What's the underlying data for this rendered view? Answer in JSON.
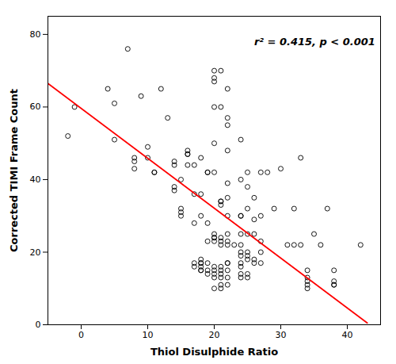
{
  "chart_data": {
    "type": "scatter",
    "title": "",
    "xlabel": "Thiol Disulphide Ratio",
    "ylabel": "Corrected TIMI Frame Count",
    "annotation": "r² = 0.415, p < 0.001",
    "xlim": [
      -5,
      45
    ],
    "ylim": [
      0,
      85
    ],
    "xticks": [
      0,
      10,
      20,
      30,
      40
    ],
    "yticks": [
      0,
      20,
      40,
      60,
      80
    ],
    "grid": false,
    "series": [
      {
        "type": "scatter",
        "color": "black",
        "marker": "circle",
        "x": [
          -2,
          -1,
          4,
          5,
          5,
          7,
          8,
          8,
          8,
          9,
          10,
          10,
          11,
          11,
          12,
          13,
          14,
          14,
          14,
          14,
          15,
          15,
          15,
          15,
          16,
          16,
          16,
          16,
          17,
          17,
          17,
          17,
          17,
          18,
          18,
          18,
          18,
          18,
          18,
          18,
          18,
          18,
          19,
          19,
          19,
          19,
          19,
          19,
          19,
          20,
          20,
          20,
          20,
          20,
          20,
          20,
          20,
          20,
          20,
          20,
          20,
          20,
          20,
          20,
          21,
          21,
          21,
          21,
          21,
          21,
          21,
          21,
          21,
          21,
          21,
          21,
          21,
          21,
          22,
          22,
          22,
          22,
          22,
          22,
          22,
          22,
          22,
          22,
          22,
          22,
          22,
          22,
          22,
          23,
          24,
          24,
          24,
          24,
          24,
          24,
          24,
          24,
          24,
          24,
          24,
          24,
          25,
          25,
          25,
          25,
          25,
          25,
          25,
          25,
          25,
          26,
          26,
          26,
          26,
          26,
          27,
          27,
          27,
          27,
          27,
          28,
          29,
          30,
          31,
          32,
          32,
          33,
          33,
          34,
          34,
          34,
          34,
          34,
          35,
          36,
          37,
          38,
          38,
          38,
          38,
          42
        ],
        "values": [
          52,
          60,
          65,
          61,
          51,
          76,
          46,
          45,
          43,
          63,
          49,
          46,
          42,
          42,
          65,
          57,
          44,
          45,
          38,
          37,
          40,
          32,
          31,
          30,
          48,
          47,
          47,
          44,
          44,
          36,
          28,
          17,
          16,
          46,
          36,
          30,
          18,
          17,
          17,
          16,
          15,
          15,
          42,
          42,
          28,
          23,
          17,
          15,
          14,
          70,
          68,
          67,
          60,
          50,
          42,
          25,
          24,
          24,
          23,
          16,
          15,
          14,
          13,
          10,
          70,
          60,
          34,
          34,
          33,
          24,
          23,
          22,
          16,
          15,
          14,
          13,
          11,
          10,
          65,
          57,
          55,
          48,
          39,
          35,
          30,
          25,
          23,
          22,
          17,
          17,
          15,
          13,
          11,
          22,
          51,
          40,
          30,
          30,
          25,
          22,
          20,
          19,
          17,
          16,
          14,
          13,
          42,
          38,
          32,
          25,
          20,
          19,
          18,
          14,
          13,
          35,
          29,
          25,
          18,
          17,
          42,
          30,
          23,
          20,
          17,
          42,
          32,
          43,
          22,
          32,
          22,
          46,
          22,
          15,
          13,
          12,
          11,
          10,
          25,
          22,
          32,
          15,
          12,
          11,
          11,
          22
        ]
      },
      {
        "type": "line",
        "color": "red",
        "line_style": "solid",
        "x": [
          -5,
          43
        ],
        "values": [
          66.5,
          0.5
        ]
      }
    ]
  }
}
